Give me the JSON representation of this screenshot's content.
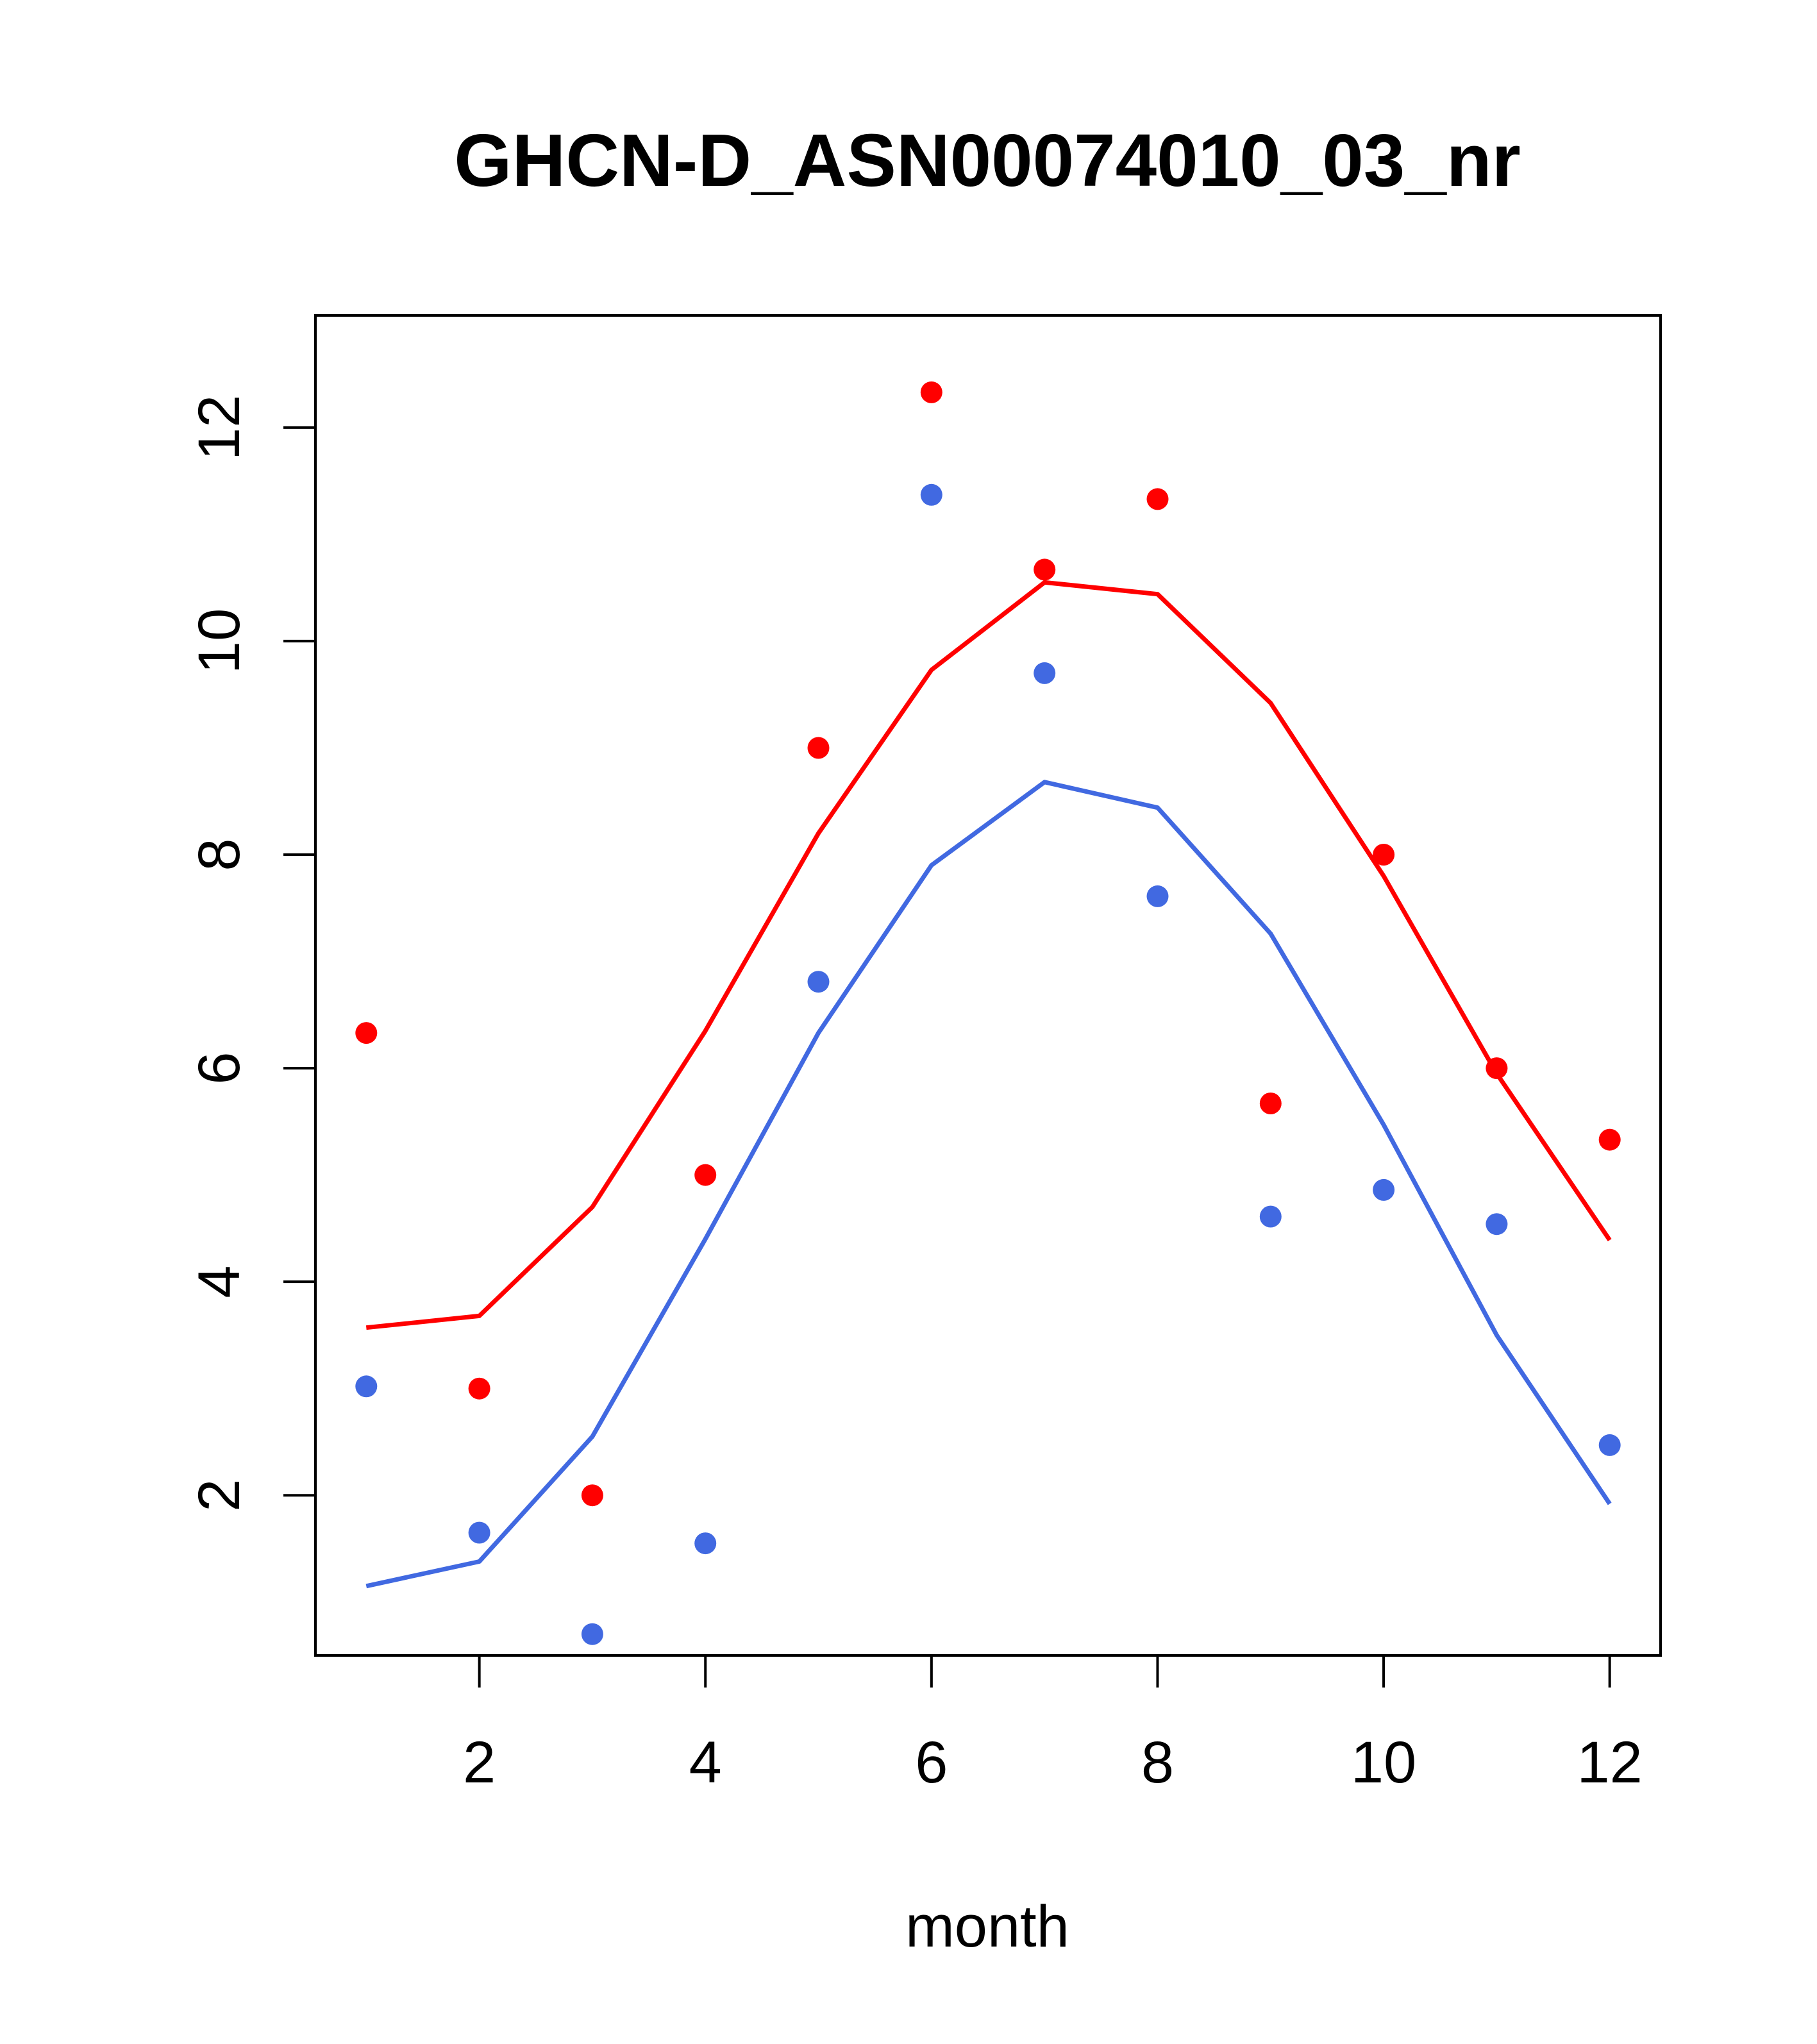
{
  "chart_data": {
    "type": "line",
    "title": "GHCN-D_ASN00074010_03_nr",
    "xlabel": "month",
    "ylabel": "",
    "xlim": [
      0.55,
      12.45
    ],
    "ylim": [
      0.5,
      13.05
    ],
    "x_ticks": [
      2,
      4,
      6,
      8,
      10,
      12
    ],
    "y_ticks": [
      2,
      4,
      6,
      8,
      10,
      12
    ],
    "grid": false,
    "legend": "none",
    "series": [
      {
        "color": "#FF0000",
        "points": {
          "x": [
            1,
            2,
            3,
            4,
            5,
            6,
            7,
            8,
            9,
            10,
            11,
            12
          ],
          "y": [
            6.33,
            3.0,
            2.0,
            5.0,
            9.0,
            12.33,
            10.67,
            11.33,
            5.67,
            8.0,
            6.0,
            5.33
          ]
        },
        "line": {
          "x": [
            1,
            2,
            3,
            4,
            5,
            6,
            7,
            8,
            9,
            10,
            11,
            12
          ],
          "y": [
            3.57,
            3.68,
            4.7,
            6.35,
            8.2,
            9.73,
            10.55,
            10.44,
            9.42,
            7.8,
            5.95,
            4.39
          ]
        }
      },
      {
        "color": "#4169E1",
        "points": {
          "x": [
            1,
            2,
            3,
            4,
            5,
            6,
            7,
            8,
            9,
            10,
            11,
            12
          ],
          "y": [
            3.02,
            1.65,
            0.7,
            1.55,
            6.81,
            11.37,
            9.7,
            7.61,
            4.61,
            4.86,
            4.54,
            2.47
          ]
        },
        "line": {
          "x": [
            1,
            2,
            3,
            4,
            5,
            6,
            7,
            8,
            9,
            10,
            11,
            12
          ],
          "y": [
            1.15,
            1.38,
            2.55,
            4.4,
            6.33,
            7.9,
            8.68,
            8.44,
            7.26,
            5.47,
            3.5,
            1.92
          ]
        }
      }
    ]
  }
}
